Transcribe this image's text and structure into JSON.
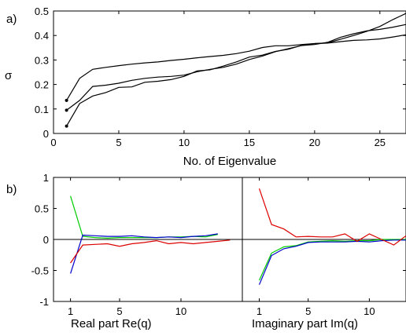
{
  "chart_data": [
    {
      "type": "line",
      "panel_label": "a)",
      "xlabel": "No. of Eigenvalue",
      "ylabel": "σ",
      "xlim": [
        0,
        27
      ],
      "ylim": [
        0,
        0.5
      ],
      "xticks": [
        0,
        5,
        10,
        15,
        20,
        25
      ],
      "yticks": [
        0,
        0.1,
        0.2,
        0.3,
        0.4,
        0.5
      ],
      "grid": false,
      "series": [
        {
          "color": "#000000",
          "x": [
            1,
            2,
            3,
            4,
            5,
            6,
            7,
            8,
            9,
            10,
            11,
            12,
            13,
            14,
            15,
            16,
            17,
            18,
            19,
            20,
            21,
            22,
            23,
            24,
            25,
            26,
            27
          ],
          "values": [
            0.135,
            0.225,
            0.262,
            0.27,
            0.277,
            0.283,
            0.288,
            0.292,
            0.298,
            0.303,
            0.309,
            0.314,
            0.319,
            0.326,
            0.336,
            0.351,
            0.358,
            0.358,
            0.363,
            0.367,
            0.369,
            0.375,
            0.38,
            0.382,
            0.386,
            0.394,
            0.403
          ]
        },
        {
          "color": "#000000",
          "x": [
            1,
            2,
            3,
            4,
            5,
            6,
            7,
            8,
            9,
            10,
            11,
            12,
            13,
            14,
            15,
            16,
            17,
            18,
            19,
            20,
            21,
            22,
            23,
            24,
            25,
            26,
            27
          ],
          "values": [
            0.095,
            0.135,
            0.192,
            0.197,
            0.205,
            0.217,
            0.225,
            0.23,
            0.233,
            0.238,
            0.252,
            0.262,
            0.27,
            0.283,
            0.302,
            0.316,
            0.334,
            0.346,
            0.359,
            0.363,
            0.372,
            0.393,
            0.407,
            0.419,
            0.425,
            0.434,
            0.445
          ]
        },
        {
          "color": "#000000",
          "x": [
            1,
            2,
            3,
            4,
            5,
            6,
            7,
            8,
            9,
            10,
            11,
            12,
            13,
            14,
            15,
            16,
            17,
            18,
            19,
            20,
            21,
            22,
            23,
            24,
            25,
            26,
            27
          ],
          "values": [
            0.03,
            0.122,
            0.153,
            0.167,
            0.188,
            0.19,
            0.209,
            0.213,
            0.22,
            0.233,
            0.255,
            0.26,
            0.275,
            0.292,
            0.312,
            0.32,
            0.335,
            0.344,
            0.36,
            0.367,
            0.37,
            0.385,
            0.4,
            0.417,
            0.437,
            0.465,
            0.49
          ]
        }
      ]
    },
    {
      "type": "line",
      "panel_label": "b)",
      "ylim": [
        -1,
        1
      ],
      "yticks": [
        -1,
        -0.5,
        0,
        0.5,
        1
      ],
      "grid": false,
      "subplots": [
        {
          "xlabel": "Real part Re(q)",
          "xlim": [
            0,
            15
          ],
          "xticks": [
            1,
            5,
            10
          ],
          "series": [
            {
              "color": "#00cc00",
              "x": [
                1,
                2,
                3,
                4,
                5,
                6,
                7,
                8,
                9,
                10,
                11,
                12,
                13
              ],
              "values": [
                0.7,
                0.05,
                0.03,
                0.02,
                0.03,
                0.03,
                0.03,
                0.03,
                0.04,
                0.04,
                0.05,
                0.04,
                0.08
              ]
            },
            {
              "color": "#0000cc",
              "x": [
                1,
                2,
                3,
                4,
                5,
                6,
                7,
                8,
                9,
                10,
                11,
                12,
                13
              ],
              "values": [
                -0.55,
                0.07,
                0.06,
                0.05,
                0.05,
                0.06,
                0.04,
                0.03,
                0.04,
                0.03,
                0.05,
                0.06,
                0.09
              ]
            },
            {
              "color": "#dd0000",
              "x": [
                1,
                2,
                3,
                4,
                5,
                6,
                7,
                8,
                9,
                10,
                11,
                12,
                13,
                14
              ],
              "values": [
                -0.38,
                -0.09,
                -0.08,
                -0.07,
                -0.11,
                -0.07,
                -0.05,
                -0.02,
                -0.07,
                -0.05,
                -0.07,
                -0.05,
                -0.03,
                -0.01
              ]
            }
          ]
        },
        {
          "xlabel": "Imaginary part  Im(q)",
          "xlim": [
            0,
            13
          ],
          "xticks": [
            1,
            5,
            10
          ],
          "series": [
            {
              "color": "#00cc00",
              "x": [
                1,
                2,
                3,
                4,
                5,
                6,
                7,
                8,
                9,
                10,
                11,
                12,
                13
              ],
              "values": [
                -0.66,
                -0.22,
                -0.12,
                -0.1,
                -0.04,
                -0.03,
                -0.02,
                -0.03,
                -0.02,
                -0.02,
                0.0,
                0.0,
                0.0
              ]
            },
            {
              "color": "#0000cc",
              "x": [
                1,
                2,
                3,
                4,
                5,
                6,
                7,
                8,
                9,
                10,
                11,
                12,
                13
              ],
              "values": [
                -0.73,
                -0.26,
                -0.15,
                -0.11,
                -0.05,
                -0.04,
                -0.04,
                -0.04,
                -0.03,
                -0.04,
                -0.02,
                -0.01,
                -0.01
              ]
            },
            {
              "color": "#dd0000",
              "x": [
                1,
                2,
                3,
                4,
                5,
                6,
                7,
                8,
                9,
                10,
                11,
                12,
                13
              ],
              "values": [
                0.82,
                0.24,
                0.17,
                0.04,
                0.05,
                0.04,
                0.04,
                0.09,
                -0.03,
                0.09,
                0.0,
                -0.09,
                0.06
              ]
            }
          ]
        }
      ]
    }
  ]
}
